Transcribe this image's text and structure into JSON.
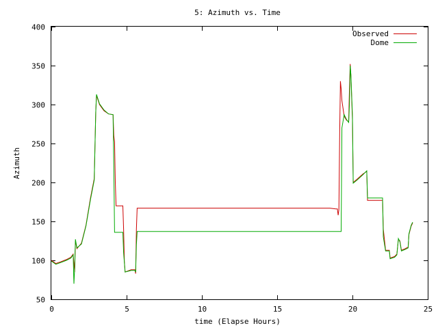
{
  "chart_data": {
    "type": "line",
    "title": "5: Azimuth vs. Time",
    "xlabel": "time (Elapse Hours)",
    "ylabel": "Azimuth",
    "xlim": [
      0,
      25
    ],
    "ylim": [
      50,
      400
    ],
    "xticks": [
      0,
      5,
      10,
      15,
      20,
      25
    ],
    "yticks": [
      50,
      100,
      150,
      200,
      250,
      300,
      350,
      400
    ],
    "grid": false,
    "legend_position": "top-right",
    "series": [
      {
        "name": "Observed",
        "color": "#cc0000",
        "points": [
          [
            0.0,
            100
          ],
          [
            0.3,
            96
          ],
          [
            0.6,
            98
          ],
          [
            1.0,
            101
          ],
          [
            1.3,
            104
          ],
          [
            1.45,
            108
          ],
          [
            1.55,
            85
          ],
          [
            1.6,
            125
          ],
          [
            1.7,
            115
          ],
          [
            2.0,
            122
          ],
          [
            2.3,
            145
          ],
          [
            2.6,
            180
          ],
          [
            2.85,
            205
          ],
          [
            2.95,
            290
          ],
          [
            3.0,
            312
          ],
          [
            3.2,
            300
          ],
          [
            3.5,
            292
          ],
          [
            3.8,
            288
          ],
          [
            4.1,
            287
          ],
          [
            4.15,
            260
          ],
          [
            4.2,
            252
          ],
          [
            4.25,
            200
          ],
          [
            4.3,
            170
          ],
          [
            4.7,
            170
          ],
          [
            4.75,
            170
          ],
          [
            4.8,
            140
          ],
          [
            4.85,
            99
          ],
          [
            4.9,
            85
          ],
          [
            5.3,
            88
          ],
          [
            5.55,
            88
          ],
          [
            5.6,
            83
          ],
          [
            5.65,
            140
          ],
          [
            5.7,
            167
          ],
          [
            6.0,
            167
          ],
          [
            10.0,
            167
          ],
          [
            15.0,
            167
          ],
          [
            18.5,
            167
          ],
          [
            18.9,
            166
          ],
          [
            19.0,
            166
          ],
          [
            19.05,
            158
          ],
          [
            19.1,
            165
          ],
          [
            19.15,
            260
          ],
          [
            19.2,
            330
          ],
          [
            19.25,
            320
          ],
          [
            19.3,
            305
          ],
          [
            19.45,
            285
          ],
          [
            19.6,
            280
          ],
          [
            19.75,
            278
          ],
          [
            19.8,
            320
          ],
          [
            19.85,
            352
          ],
          [
            19.9,
            335
          ],
          [
            20.0,
            280
          ],
          [
            20.05,
            200
          ],
          [
            20.3,
            204
          ],
          [
            20.7,
            211
          ],
          [
            20.95,
            214
          ],
          [
            21.0,
            177
          ],
          [
            22.0,
            177
          ],
          [
            22.05,
            140
          ],
          [
            22.2,
            113
          ],
          [
            22.45,
            113
          ],
          [
            22.5,
            103
          ],
          [
            22.8,
            105
          ],
          [
            22.95,
            108
          ],
          [
            23.05,
            127
          ],
          [
            23.15,
            125
          ],
          [
            23.25,
            113
          ],
          [
            23.5,
            115
          ],
          [
            23.7,
            117
          ],
          [
            23.75,
            133
          ],
          [
            23.9,
            144
          ],
          [
            24.0,
            148
          ]
        ]
      },
      {
        "name": "Dome",
        "color": "#00aa00",
        "points": [
          [
            0.0,
            99
          ],
          [
            0.3,
            95
          ],
          [
            0.6,
            97
          ],
          [
            1.0,
            100
          ],
          [
            1.3,
            103
          ],
          [
            1.45,
            107
          ],
          [
            1.5,
            70
          ],
          [
            1.55,
            90
          ],
          [
            1.6,
            127
          ],
          [
            1.7,
            116
          ],
          [
            2.0,
            121
          ],
          [
            2.3,
            144
          ],
          [
            2.6,
            178
          ],
          [
            2.85,
            203
          ],
          [
            2.95,
            290
          ],
          [
            3.0,
            313
          ],
          [
            3.2,
            301
          ],
          [
            3.5,
            293
          ],
          [
            3.8,
            288
          ],
          [
            4.1,
            287
          ],
          [
            4.15,
            220
          ],
          [
            4.2,
            136
          ],
          [
            4.7,
            136
          ],
          [
            4.75,
            136
          ],
          [
            4.8,
            110
          ],
          [
            4.9,
            85
          ],
          [
            5.3,
            87
          ],
          [
            5.55,
            87
          ],
          [
            5.6,
            85
          ],
          [
            5.65,
            120
          ],
          [
            5.7,
            137
          ],
          [
            6.0,
            137
          ],
          [
            10.0,
            137
          ],
          [
            15.0,
            137
          ],
          [
            19.0,
            137
          ],
          [
            19.25,
            137
          ],
          [
            19.3,
            270
          ],
          [
            19.45,
            287
          ],
          [
            19.6,
            281
          ],
          [
            19.75,
            277
          ],
          [
            19.8,
            300
          ],
          [
            19.85,
            350
          ],
          [
            19.9,
            338
          ],
          [
            20.0,
            285
          ],
          [
            20.05,
            199
          ],
          [
            20.3,
            203
          ],
          [
            20.7,
            210
          ],
          [
            20.95,
            215
          ],
          [
            21.0,
            180
          ],
          [
            22.0,
            180
          ],
          [
            22.05,
            130
          ],
          [
            22.2,
            112
          ],
          [
            22.45,
            112
          ],
          [
            22.5,
            102
          ],
          [
            22.8,
            104
          ],
          [
            22.95,
            107
          ],
          [
            23.05,
            128
          ],
          [
            23.15,
            124
          ],
          [
            23.25,
            112
          ],
          [
            23.5,
            114
          ],
          [
            23.7,
            116
          ],
          [
            23.75,
            134
          ],
          [
            23.9,
            145
          ],
          [
            24.0,
            149
          ]
        ]
      }
    ]
  }
}
